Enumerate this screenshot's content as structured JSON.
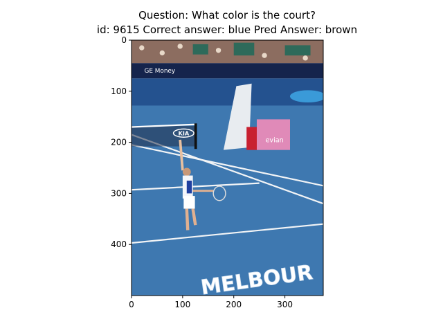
{
  "title": [
    "Question: What color is the court?",
    "id: 9615 Correct answer: blue Pred Answer: brown"
  ],
  "axes": {
    "xlim": [
      0,
      375
    ],
    "ylim": [
      500,
      0
    ],
    "xticks": [
      0,
      100,
      200,
      300
    ],
    "yticks": [
      0,
      100,
      200,
      300,
      400
    ]
  },
  "image_texts": [
    "GE Money",
    "KIA",
    "evian",
    "MELBOUR"
  ]
}
